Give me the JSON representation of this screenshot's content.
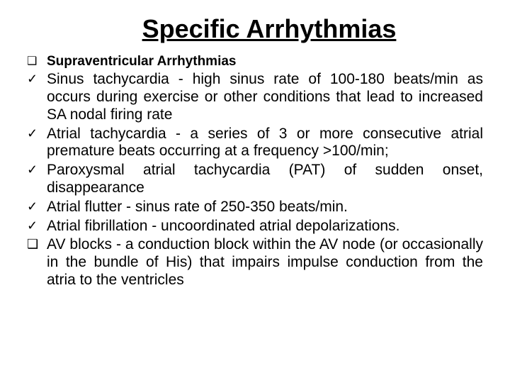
{
  "title": "Specific Arrhythmias",
  "items": [
    {
      "bullet": "❑",
      "bulletClass": "square",
      "text": "Supraventricular Arrhythmias",
      "cls": "subhead"
    },
    {
      "bullet": "✓",
      "bulletClass": "check",
      "text": "Sinus tachycardia - high sinus rate of 100-180 beats/min as occurs during exercise or other conditions that lead to increased SA nodal firing rate",
      "cls": ""
    },
    {
      "bullet": "✓",
      "bulletClass": "check",
      "text": "Atrial tachycardia - a series of 3 or more consecutive atrial premature beats occurring at a frequency >100/min;",
      "cls": ""
    },
    {
      "bullet": "✓",
      "bulletClass": "check",
      "text": "Paroxysmal atrial tachycardia (PAT) of sudden onset, disappearance",
      "cls": ""
    },
    {
      "bullet": "✓",
      "bulletClass": "check",
      "text": "Atrial flutter - sinus rate of 250-350 beats/min.",
      "cls": ""
    },
    {
      "bullet": "✓",
      "bulletClass": "check",
      "text": "Atrial fibrillation - uncoordinated atrial depolarizations.",
      "cls": ""
    },
    {
      "bullet": "❑",
      "bulletClass": "square",
      "text": "AV blocks - a conduction block within the AV node (or occasionally in the bundle of His) that impairs impulse conduction from the atria to the ventricles",
      "cls": ""
    }
  ],
  "colors": {
    "background": "#ffffff",
    "text": "#000000"
  },
  "typography": {
    "title_fontsize": 36,
    "body_fontsize": 21,
    "subhead_fontsize": 19,
    "font_family": "Arial"
  }
}
